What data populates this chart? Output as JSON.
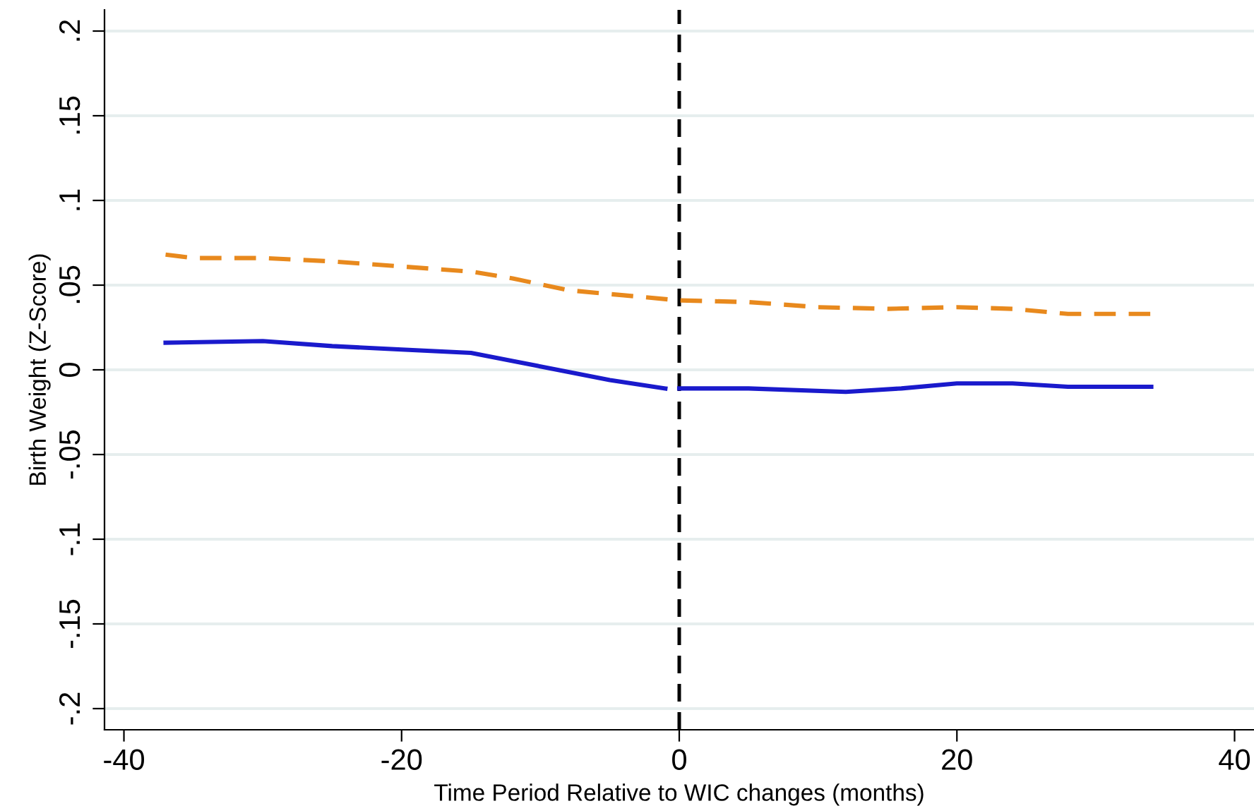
{
  "chart_data": {
    "type": "line",
    "xlabel": "Time Period Relative to WIC changes (months)",
    "ylabel": "Birth Weight (Z-Score)",
    "xlim": [
      -41.4,
      41.4
    ],
    "xticks": [
      -40,
      -20,
      0,
      20,
      40
    ],
    "ylim": [
      -0.2125,
      0.2125
    ],
    "yticks": [
      {
        "value": -0.2,
        "label": "-.2"
      },
      {
        "value": -0.15,
        "label": "-.15"
      },
      {
        "value": -0.1,
        "label": "-.1"
      },
      {
        "value": -0.05,
        "label": "-.05"
      },
      0,
      {
        "value": 0.05,
        "label": ".05"
      },
      {
        "value": 0.1,
        "label": ".1"
      },
      {
        "value": 0.15,
        "label": ".15"
      },
      {
        "value": 0.2,
        "label": ".2"
      }
    ],
    "grid": "y",
    "legend": false,
    "marker": "none",
    "ref_lines": [
      {
        "axis": "x",
        "value": 0,
        "color": "#000000",
        "line_style": "dashed"
      }
    ],
    "series": [
      {
        "color": "#e8891d",
        "line_style": "dashed",
        "x": [
          -37,
          -35,
          -30,
          -25,
          -20,
          -15,
          -12,
          -8,
          -4,
          0,
          5,
          10,
          15,
          20,
          24,
          28,
          34
        ],
        "values": [
          0.068,
          0.066,
          0.066,
          0.064,
          0.061,
          0.058,
          0.054,
          0.047,
          0.044,
          0.041,
          0.04,
          0.037,
          0.036,
          0.037,
          0.036,
          0.033,
          0.033
        ]
      },
      {
        "color": "#1a1acc",
        "line_style": "solid",
        "x": [
          -37,
          -30,
          -25,
          -20,
          -15,
          -10,
          -5,
          -1,
          -0.5,
          0,
          5,
          12,
          16,
          20,
          24,
          28,
          34
        ],
        "values": [
          0.016,
          0.017,
          0.014,
          0.012,
          0.01,
          0.002,
          -0.006,
          -0.011,
          null,
          -0.011,
          -0.011,
          -0.013,
          -0.011,
          -0.008,
          -0.008,
          -0.01,
          -0.01
        ]
      }
    ]
  }
}
